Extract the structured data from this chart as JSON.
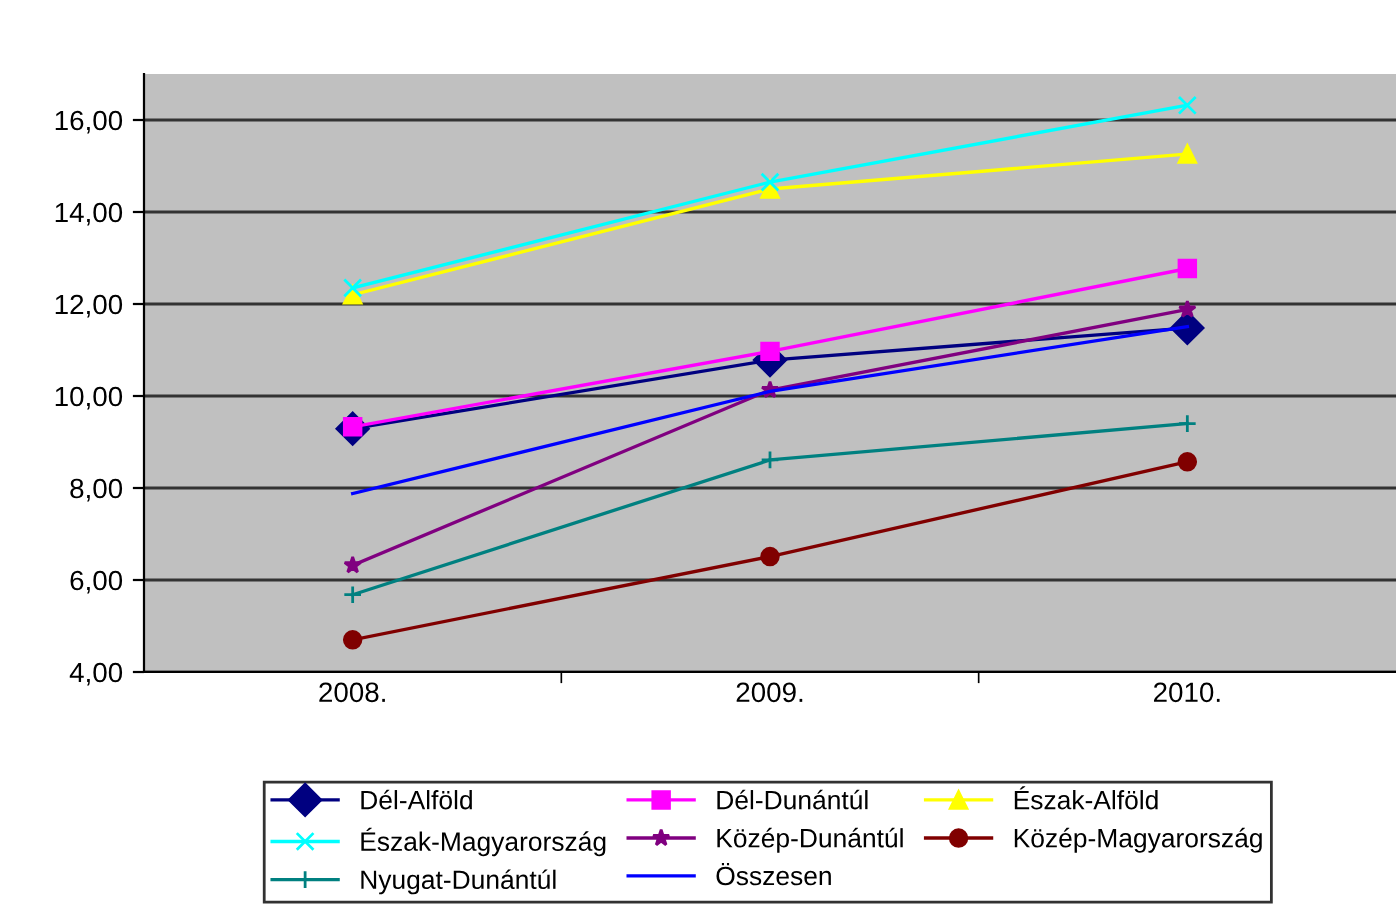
{
  "chart_data": {
    "type": "line",
    "categories": [
      "2008.",
      "2009.",
      "2010."
    ],
    "series": [
      {
        "name": "Dél-Alföld",
        "color": "#000080",
        "marker": "diamond",
        "values": [
          9.29,
          10.78,
          11.48
        ]
      },
      {
        "name": "Dél-Dunántúl",
        "color": "#ff00ff",
        "marker": "square",
        "values": [
          9.33,
          10.97,
          12.77
        ]
      },
      {
        "name": "Észak-Alföld",
        "color": "#ffff00",
        "marker": "triangle",
        "values": [
          12.2,
          14.5,
          15.26
        ]
      },
      {
        "name": "Észak-Magyarország",
        "color": "#00ffff",
        "marker": "cross",
        "values": [
          12.35,
          14.65,
          16.32
        ]
      },
      {
        "name": "Közép-Dunántúl",
        "color": "#800080",
        "marker": "star",
        "values": [
          6.32,
          10.13,
          11.88
        ]
      },
      {
        "name": "Közép-Magyarország",
        "color": "#800000",
        "marker": "circle",
        "values": [
          4.7,
          6.51,
          8.57
        ]
      },
      {
        "name": "Nyugat-Dunántúl",
        "color": "#008080",
        "marker": "plus",
        "values": [
          5.68,
          8.61,
          9.4
        ]
      },
      {
        "name": "Összesen",
        "color": "#0000ff",
        "marker": "none",
        "values": [
          7.88,
          10.1,
          11.51
        ]
      }
    ],
    "ylim": [
      4,
      17
    ],
    "yticks": [
      {
        "value": 4,
        "label": "4,00"
      },
      {
        "value": 6,
        "label": "6,00"
      },
      {
        "value": 8,
        "label": "8,00"
      },
      {
        "value": 10,
        "label": "10,00"
      },
      {
        "value": 12,
        "label": "12,00"
      },
      {
        "value": 14,
        "label": "14,00"
      },
      {
        "value": 16,
        "label": "16,00"
      }
    ],
    "grid": "y",
    "legend": "bottom"
  }
}
